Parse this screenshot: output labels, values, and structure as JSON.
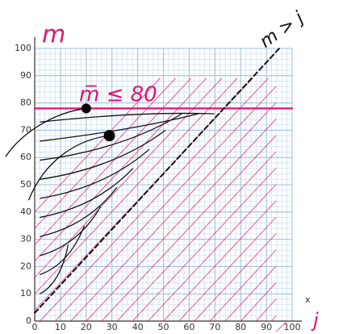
{
  "chart_data": {
    "type": "line",
    "xlim": [
      0,
      100
    ],
    "ylim": [
      0,
      100
    ],
    "xticks": [
      0,
      10,
      20,
      30,
      40,
      50,
      60,
      70,
      80,
      90,
      100
    ],
    "yticks": [
      0,
      10,
      20,
      30,
      40,
      50,
      60,
      70,
      80,
      90,
      100
    ],
    "x_label": "x",
    "grid": true,
    "annotations": [
      "m",
      "m̅ ≤ 80",
      "m > j",
      "j"
    ],
    "series": [
      {
        "color": "#e0156f",
        "x": [
          0,
          100
        ],
        "values": [
          78,
          78
        ]
      },
      {
        "color": "#111111",
        "x": [
          0,
          95
        ],
        "values": [
          3,
          100
        ]
      }
    ],
    "points": {
      "color": "#000000",
      "x": [
        20,
        29
      ],
      "values": [
        78,
        68
      ]
    }
  }
}
